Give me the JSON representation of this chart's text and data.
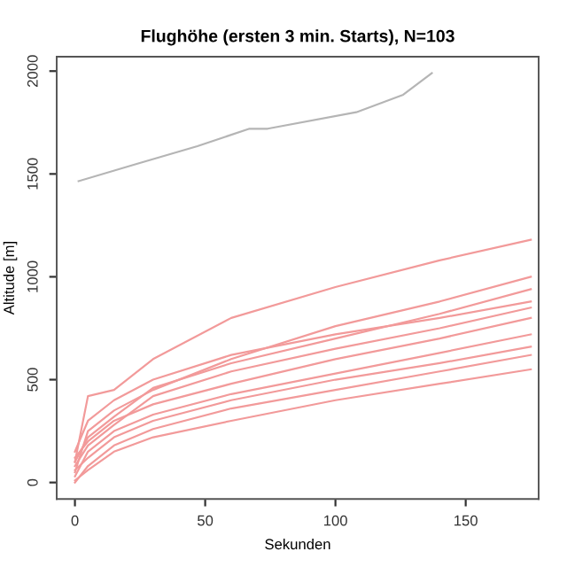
{
  "chart_data": {
    "type": "line",
    "title": "Flughöhe (ersten 3 min. Starts), N=103",
    "xlabel": "Sekunden",
    "ylabel": "Altitude [m]",
    "x": [
      0,
      5,
      15,
      30,
      60,
      100,
      140,
      175
    ],
    "series": [
      {
        "color": "#f29a9a",
        "values": [
          100,
          420,
          450,
          600,
          800,
          950,
          1080,
          1180
        ]
      },
      {
        "color": "#f29a9a",
        "values": [
          50,
          250,
          350,
          450,
          600,
          760,
          880,
          1000
        ]
      },
      {
        "color": "#f29a9a",
        "values": [
          120,
          200,
          300,
          380,
          480,
          600,
          700,
          800
        ]
      },
      {
        "color": "#f29a9a",
        "values": [
          30,
          150,
          250,
          330,
          430,
          530,
          630,
          720
        ]
      },
      {
        "color": "#f29a9a",
        "values": [
          0,
          80,
          180,
          260,
          360,
          450,
          540,
          620
        ]
      },
      {
        "color": "#f29a9a",
        "values": [
          10,
          60,
          150,
          220,
          300,
          400,
          480,
          550
        ]
      },
      {
        "color": "#f29a9a",
        "values": [
          150,
          300,
          400,
          500,
          620,
          720,
          800,
          880
        ]
      },
      {
        "color": "#f29a9a",
        "values": [
          80,
          180,
          280,
          420,
          540,
          650,
          750,
          850
        ]
      },
      {
        "color": "#f29a9a",
        "values": [
          60,
          120,
          220,
          300,
          400,
          500,
          580,
          660
        ]
      },
      {
        "color": "#f29a9a",
        "values": [
          100,
          220,
          320,
          460,
          580,
          700,
          820,
          940
        ]
      },
      {
        "color": "#b5b5b5",
        "x": [
          1.4,
          24,
          47,
          67,
          74,
          108,
          126,
          137
        ],
        "values": [
          1465,
          1550,
          1635,
          1720,
          1720,
          1800,
          1885,
          1990
        ]
      }
    ],
    "xlim": [
      -7,
      178
    ],
    "ylim": [
      -80,
      2070
    ],
    "xticks": [
      0,
      50,
      100,
      150
    ],
    "yticks": [
      0,
      500,
      1000,
      1500,
      2000
    ],
    "grid": false,
    "legend": false,
    "marker": "none",
    "line_style": "solid"
  }
}
